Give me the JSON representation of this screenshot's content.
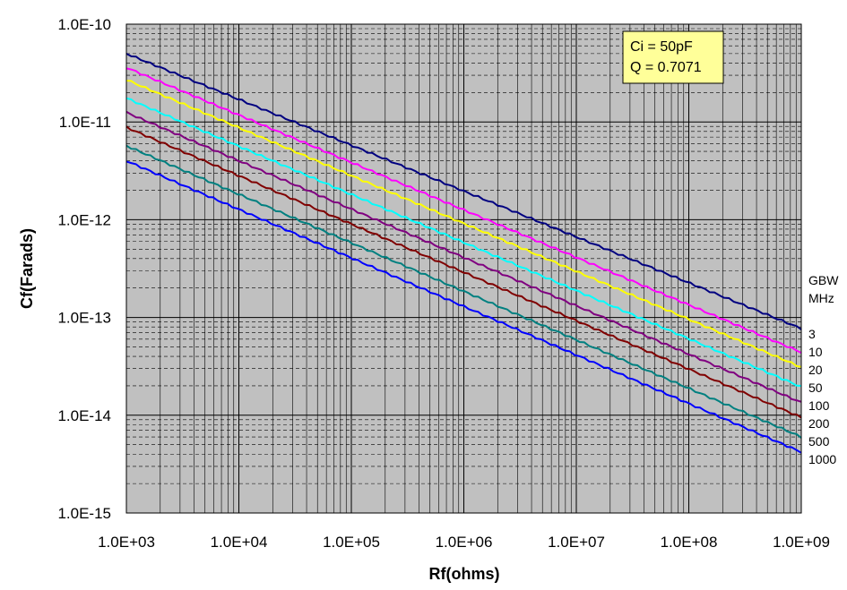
{
  "chart_data": {
    "type": "line",
    "x_scale": "log",
    "y_scale": "log",
    "xlabel": "Rf(ohms)",
    "ylabel": "Cf(Farads)",
    "xlim": [
      1000,
      1000000000
    ],
    "ylim": [
      1e-15,
      1e-10
    ],
    "x_tick_labels": [
      "1.0E+03",
      "1.0E+04",
      "1.0E+05",
      "1.0E+06",
      "1.0E+07",
      "1.0E+08",
      "1.0E+09"
    ],
    "y_tick_labels": [
      "1.0E-10",
      "1.0E-11",
      "1.0E-12",
      "1.0E-13",
      "1.0E-14",
      "1.0E-15"
    ],
    "grid": true,
    "background": "#c0c0c0",
    "annotation": {
      "lines": [
        "Ci = 50pF",
        "Q = 0.7071"
      ],
      "background": "#ffff99"
    },
    "legend_title": [
      "GBW",
      "MHz"
    ],
    "series": [
      {
        "name": "3",
        "color": "#000080",
        "x": [
          1000,
          1000000000
        ],
        "y": [
          5e-11,
          7.7e-14
        ]
      },
      {
        "name": "10",
        "color": "#ff00ff",
        "x": [
          1000,
          1000000000
        ],
        "y": [
          3.6e-11,
          4.4e-14
        ]
      },
      {
        "name": "20",
        "color": "#ffff00",
        "x": [
          1000,
          1000000000
        ],
        "y": [
          2.7e-11,
          3.1e-14
        ]
      },
      {
        "name": "50",
        "color": "#00ffff",
        "x": [
          1000,
          1000000000
        ],
        "y": [
          1.75e-11,
          1.95e-14
        ]
      },
      {
        "name": "100",
        "color": "#800080",
        "x": [
          1000,
          1000000000
        ],
        "y": [
          1.25e-11,
          1.35e-14
        ]
      },
      {
        "name": "200",
        "color": "#800000",
        "x": [
          1000,
          1000000000
        ],
        "y": [
          8.8e-12,
          9.5e-15
        ]
      },
      {
        "name": "500",
        "color": "#008080",
        "x": [
          1000,
          1000000000
        ],
        "y": [
          5.7e-12,
          6e-15
        ]
      },
      {
        "name": "1000",
        "color": "#0000ff",
        "x": [
          1000,
          1000000000
        ],
        "y": [
          4e-12,
          4.2e-15
        ]
      }
    ]
  }
}
